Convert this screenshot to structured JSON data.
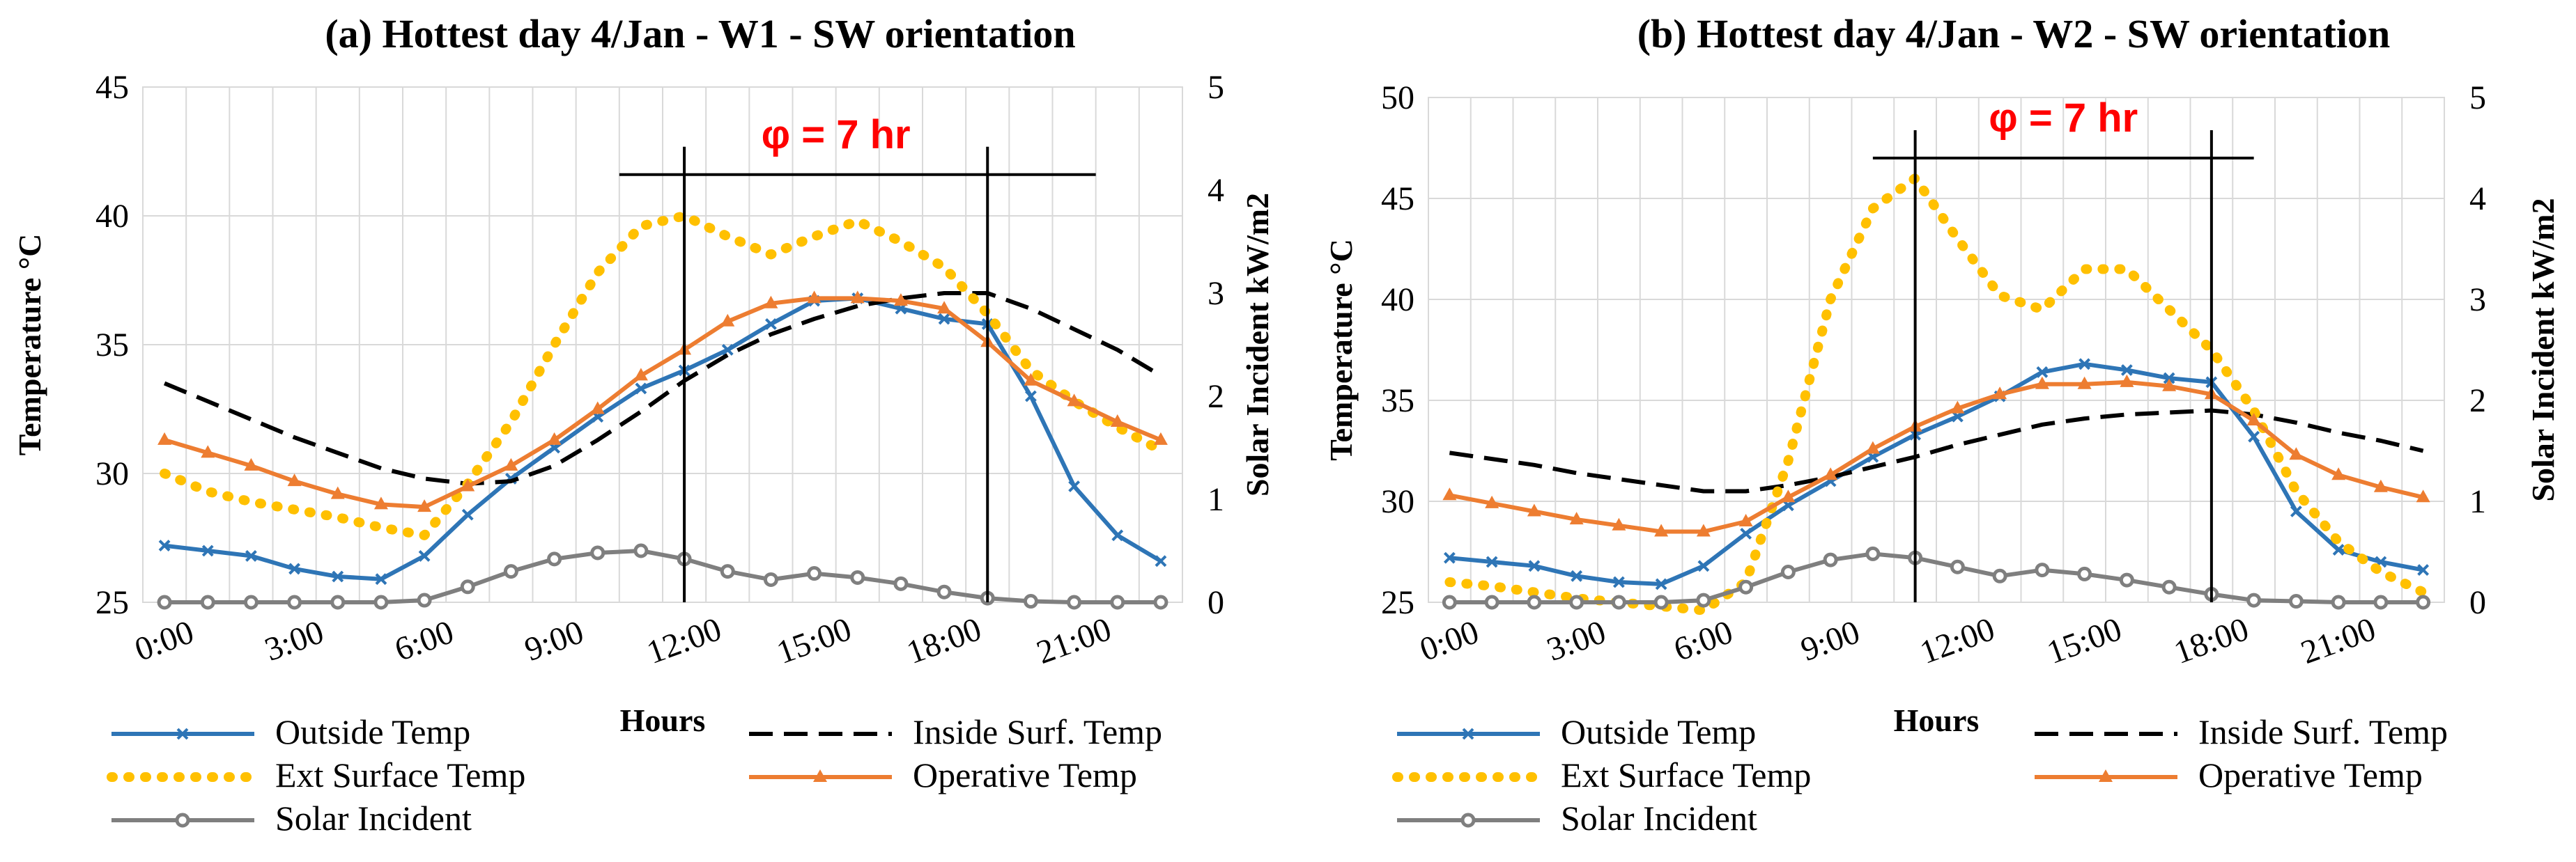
{
  "chart_data": [
    {
      "id": "a",
      "type": "line",
      "title": "(a) Hottest day 4/Jan - W1 - SW orientation",
      "xlabel": "Hours",
      "ylabel": "Temperature °C",
      "y2label": "Solar Incident kW/m2",
      "ylim": [
        25,
        45
      ],
      "y2lim": [
        0,
        5
      ],
      "yticks": [
        "25",
        "30",
        "35",
        "40",
        "45"
      ],
      "y2ticks": [
        "0",
        "1",
        "2",
        "3",
        "4",
        "5"
      ],
      "xticks": [
        "0:00",
        "3:00",
        "6:00",
        "9:00",
        "12:00",
        "15:00",
        "18:00",
        "21:00"
      ],
      "grid": true,
      "annotation": {
        "text": "φ = 7 hr",
        "start_hour": 12,
        "end_hour": 19,
        "bar_from_hour": 10.5,
        "bar_to_hour": 21.5,
        "bar_level": 41.6
      },
      "x": [
        0,
        1,
        2,
        3,
        4,
        5,
        6,
        7,
        8,
        9,
        10,
        11,
        12,
        13,
        14,
        15,
        16,
        17,
        18,
        19,
        20,
        21,
        22,
        23
      ],
      "series": [
        {
          "name": "Outside Temp",
          "axis": "left",
          "color": "#2e75b6",
          "style": "solid",
          "marker": "x",
          "values": [
            27.2,
            27.0,
            26.8,
            26.3,
            26.0,
            25.9,
            26.8,
            28.4,
            29.8,
            31.0,
            32.2,
            33.3,
            34.0,
            34.8,
            35.8,
            36.7,
            36.8,
            36.4,
            36.0,
            35.8,
            33.0,
            29.5,
            27.6,
            26.6
          ]
        },
        {
          "name": "Inside Surf. Temp",
          "axis": "left",
          "color": "#000000",
          "style": "dashed",
          "marker": "none",
          "values": [
            33.5,
            32.8,
            32.1,
            31.4,
            30.8,
            30.2,
            29.8,
            29.6,
            29.7,
            30.3,
            31.3,
            32.4,
            33.6,
            34.6,
            35.4,
            36.0,
            36.5,
            36.8,
            37.0,
            37.0,
            36.4,
            35.6,
            34.8,
            33.8
          ]
        },
        {
          "name": "Ext Surface Temp",
          "axis": "left",
          "color": "#ffc000",
          "style": "dotted",
          "marker": "none",
          "values": [
            30.0,
            29.3,
            28.9,
            28.6,
            28.3,
            27.9,
            27.6,
            29.6,
            32.0,
            35.0,
            37.8,
            39.6,
            40.0,
            39.2,
            38.5,
            39.2,
            39.8,
            39.0,
            38.0,
            36.2,
            34.0,
            32.8,
            31.8,
            30.9
          ]
        },
        {
          "name": "Operative Temp",
          "axis": "left",
          "color": "#ed7d31",
          "style": "solid",
          "marker": "triangle",
          "values": [
            31.3,
            30.8,
            30.3,
            29.7,
            29.2,
            28.8,
            28.7,
            29.5,
            30.3,
            31.3,
            32.5,
            33.8,
            34.8,
            35.9,
            36.6,
            36.8,
            36.8,
            36.7,
            36.4,
            35.1,
            33.6,
            32.8,
            32.0,
            31.3
          ]
        },
        {
          "name": "Solar Incident",
          "axis": "right",
          "color": "#7f7f7f",
          "style": "solid",
          "marker": "circle",
          "values": [
            0,
            0,
            0,
            0,
            0,
            0,
            0.02,
            0.15,
            0.3,
            0.42,
            0.48,
            0.5,
            0.42,
            0.3,
            0.22,
            0.28,
            0.24,
            0.18,
            0.1,
            0.04,
            0.01,
            0,
            0,
            0
          ]
        }
      ]
    },
    {
      "id": "b",
      "type": "line",
      "title": "(b) Hottest day 4/Jan - W2 - SW orientation",
      "xlabel": "Hours",
      "ylabel": "Temperature °C",
      "y2label": "Solar Incident kW/m2",
      "ylim": [
        25,
        50
      ],
      "y2lim": [
        0,
        5
      ],
      "yticks": [
        "25",
        "30",
        "35",
        "40",
        "45",
        "50"
      ],
      "y2ticks": [
        "0",
        "1",
        "2",
        "3",
        "4",
        "5"
      ],
      "xticks": [
        "0:00",
        "3:00",
        "6:00",
        "9:00",
        "12:00",
        "15:00",
        "18:00",
        "21:00"
      ],
      "grid": true,
      "annotation": {
        "text": "φ = 7 hr",
        "start_hour": 11,
        "end_hour": 18,
        "bar_from_hour": 10,
        "bar_to_hour": 19,
        "bar_level": 47.0
      },
      "x": [
        0,
        1,
        2,
        3,
        4,
        5,
        6,
        7,
        8,
        9,
        10,
        11,
        12,
        13,
        14,
        15,
        16,
        17,
        18,
        19,
        20,
        21,
        22,
        23
      ],
      "series": [
        {
          "name": "Outside Temp",
          "axis": "left",
          "color": "#2e75b6",
          "style": "solid",
          "marker": "x",
          "values": [
            27.2,
            27.0,
            26.8,
            26.3,
            26.0,
            25.9,
            26.8,
            28.4,
            29.8,
            31.0,
            32.2,
            33.3,
            34.2,
            35.2,
            36.4,
            36.8,
            36.5,
            36.1,
            35.9,
            33.2,
            29.5,
            27.6,
            27.0,
            26.6
          ]
        },
        {
          "name": "Inside Surf. Temp",
          "axis": "left",
          "color": "#000000",
          "style": "dashed",
          "marker": "none",
          "values": [
            32.4,
            32.1,
            31.8,
            31.4,
            31.1,
            30.8,
            30.5,
            30.5,
            30.8,
            31.2,
            31.7,
            32.2,
            32.8,
            33.3,
            33.8,
            34.1,
            34.3,
            34.4,
            34.5,
            34.3,
            33.9,
            33.4,
            33.0,
            32.5
          ]
        },
        {
          "name": "Ext Surface Temp",
          "axis": "left",
          "color": "#ffc000",
          "style": "dotted",
          "marker": "none",
          "values": [
            26.0,
            25.8,
            25.5,
            25.2,
            25.0,
            24.8,
            24.6,
            26.0,
            32.0,
            40.0,
            44.5,
            46.0,
            43.0,
            40.2,
            39.5,
            41.5,
            41.5,
            39.5,
            37.5,
            34.5,
            30.5,
            28.0,
            26.5,
            25.5
          ]
        },
        {
          "name": "Operative Temp",
          "axis": "left",
          "color": "#ed7d31",
          "style": "solid",
          "marker": "triangle",
          "values": [
            30.3,
            29.9,
            29.5,
            29.1,
            28.8,
            28.5,
            28.5,
            29.0,
            30.2,
            31.3,
            32.6,
            33.7,
            34.6,
            35.3,
            35.8,
            35.8,
            35.9,
            35.7,
            35.3,
            34.0,
            32.3,
            31.3,
            30.7,
            30.2
          ]
        },
        {
          "name": "Solar Incident",
          "axis": "right",
          "color": "#7f7f7f",
          "style": "solid",
          "marker": "circle",
          "values": [
            0,
            0,
            0,
            0,
            0,
            0,
            0.02,
            0.15,
            0.3,
            0.42,
            0.48,
            0.44,
            0.35,
            0.26,
            0.32,
            0.28,
            0.22,
            0.15,
            0.08,
            0.02,
            0.01,
            0,
            0,
            0
          ]
        }
      ]
    }
  ],
  "legend": {
    "items": [
      {
        "name": "Outside Temp",
        "color": "#2e75b6",
        "style": "solid",
        "marker": "x"
      },
      {
        "name": "Inside Surf. Temp",
        "color": "#000000",
        "style": "dashed",
        "marker": "none"
      },
      {
        "name": "Ext Surface Temp",
        "color": "#ffc000",
        "style": "dotted",
        "marker": "none"
      },
      {
        "name": "Operative Temp",
        "color": "#ed7d31",
        "style": "solid",
        "marker": "triangle"
      },
      {
        "name": "Solar Incident",
        "color": "#7f7f7f",
        "style": "solid",
        "marker": "circle"
      }
    ]
  }
}
